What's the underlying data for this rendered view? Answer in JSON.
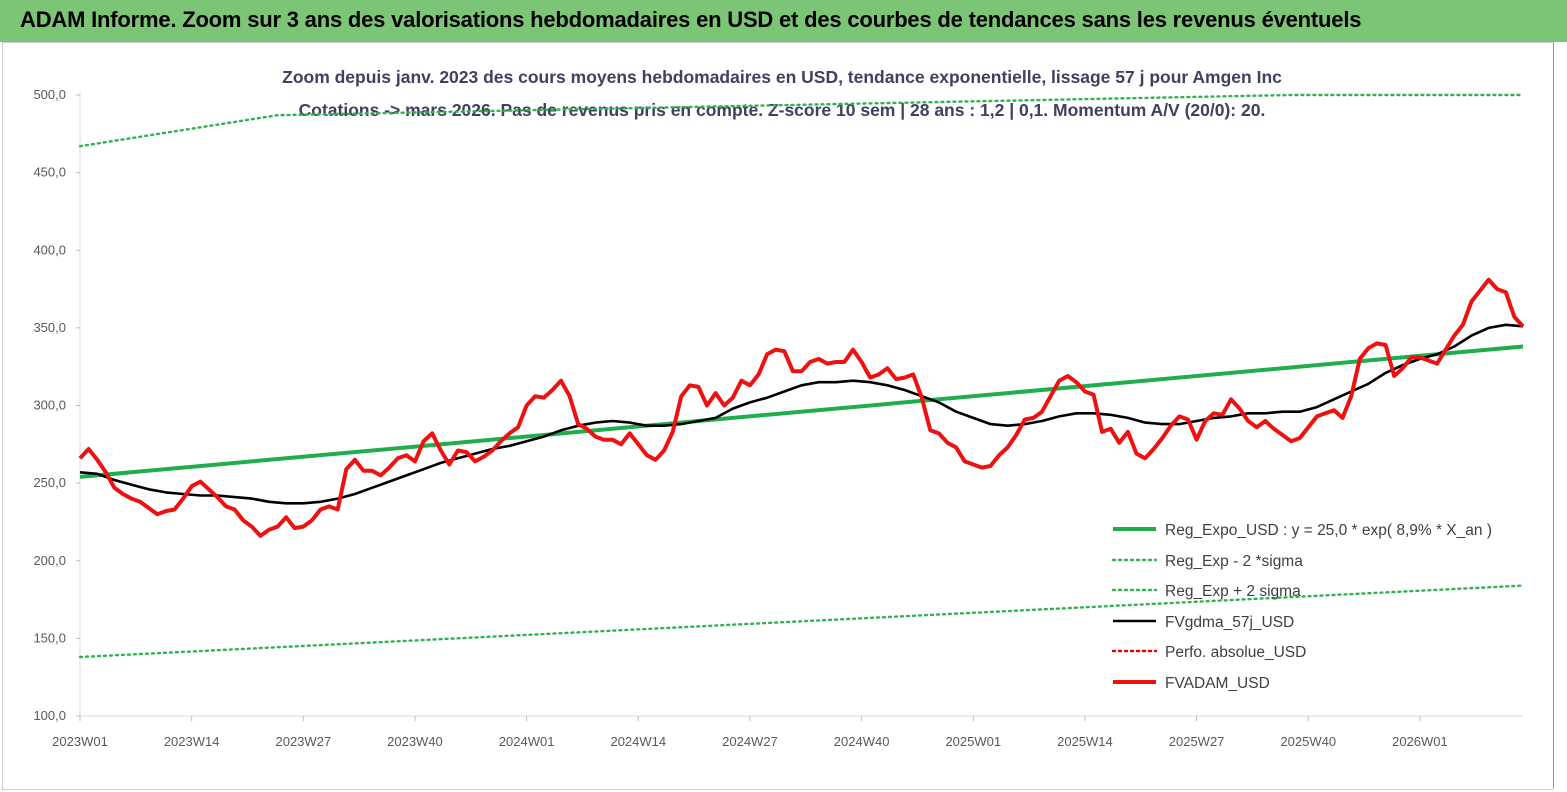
{
  "banner_title": "ADAM Informe. Zoom sur 3 ans des valorisations hebdomadaires en USD et des courbes de tendances sans les revenus éventuels",
  "colors": {
    "banner": "#7cc576",
    "reg_expo": "#1fae4b",
    "sigma": "#2fb24f",
    "gdma": "#000000",
    "perfo": "#e00000",
    "adam": "#ee1111"
  },
  "chart_data": {
    "type": "line",
    "title_line1": "Zoom depuis janv. 2023 des cours moyens hebdomadaires en USD, tendance exponentielle, lissage 57 j pour Amgen Inc",
    "title_line2": "Cotations -> mars 2026. Pas de revenus pris en compte. Z-score 10 sem | 28 ans : 1,2 | 0,1. Momentum A/V (20/0): 20.",
    "ylim": [
      100,
      500
    ],
    "y_ticks": [
      "100,0",
      "150,0",
      "200,0",
      "250,0",
      "300,0",
      "350,0",
      "400,0",
      "450,0",
      "500,0"
    ],
    "x_ticks": [
      "2023W01",
      "2023W14",
      "2023W27",
      "2023W40",
      "2024W01",
      "2024W14",
      "2024W27",
      "2024W40",
      "2025W01",
      "2025W14",
      "2025W27",
      "2025W40",
      "2026W01"
    ],
    "x_week_count": 169,
    "grid": false,
    "legend_position": "bottom-right",
    "series": [
      {
        "name": "Reg_Expo_USD : y = 25,0 * exp( 8,9% *  X_an )",
        "style": "solid-thick",
        "color": "#1fae4b",
        "x": [
          0,
          168
        ],
        "y": [
          254,
          338
        ]
      },
      {
        "name": "Reg_Exp - 2 *sigma",
        "style": "dotted",
        "color": "#2fb24f",
        "x": [
          0,
          168
        ],
        "y": [
          138,
          184
        ]
      },
      {
        "name": "Reg_Exp + 2 sigma",
        "style": "dotted",
        "color": "#2fb24f",
        "x": [
          0,
          23,
          141,
          168
        ],
        "y": [
          467,
          487,
          500,
          500
        ]
      },
      {
        "name": "FVgdma_57j_USD",
        "style": "solid",
        "color": "#000000",
        "x": [
          0,
          2,
          4,
          6,
          8,
          10,
          12,
          14,
          16,
          18,
          20,
          22,
          24,
          26,
          28,
          30,
          32,
          34,
          36,
          38,
          40,
          42,
          44,
          46,
          48,
          50,
          52,
          54,
          56,
          58,
          60,
          62,
          64,
          66,
          68,
          70,
          72,
          74,
          76,
          78,
          80,
          82,
          84,
          86,
          88,
          90,
          92,
          94,
          96,
          98,
          100,
          102,
          104,
          106,
          108,
          110,
          112,
          114,
          116,
          118,
          120,
          122,
          124,
          126,
          128,
          130,
          132,
          134,
          136,
          138,
          140,
          142,
          144,
          146,
          148,
          150,
          152,
          154,
          156,
          158,
          160,
          162,
          164,
          166,
          168
        ],
        "y": [
          257,
          256,
          252,
          249,
          246,
          244,
          243,
          242,
          242,
          241,
          240,
          238,
          237,
          237,
          238,
          240,
          243,
          247,
          251,
          255,
          259,
          263,
          266,
          269,
          272,
          274,
          277,
          280,
          284,
          287,
          289,
          290,
          289,
          287,
          287,
          288,
          290,
          292,
          298,
          302,
          305,
          309,
          313,
          315,
          315,
          316,
          315,
          313,
          310,
          306,
          302,
          296,
          292,
          288,
          287,
          288,
          290,
          293,
          295,
          295,
          294,
          292,
          289,
          288,
          288,
          290,
          292,
          293,
          295,
          295,
          296,
          296,
          299,
          304,
          309,
          314,
          321,
          326,
          330,
          333,
          338,
          345,
          350,
          352,
          351
        ],
        "note": ""
      },
      {
        "name": "Perfo. absolue_USD",
        "style": "dotted",
        "color": "#e00000",
        "x": [],
        "y": []
      },
      {
        "name": "FVADAM_USD",
        "style": "solid-thick",
        "color": "#ee1111",
        "x": [
          0,
          1,
          2,
          3,
          4,
          5,
          6,
          7,
          8,
          9,
          10,
          11,
          12,
          13,
          14,
          15,
          16,
          17,
          18,
          19,
          20,
          21,
          22,
          23,
          24,
          25,
          26,
          27,
          28,
          29,
          30,
          31,
          32,
          33,
          34,
          35,
          36,
          37,
          38,
          39,
          40,
          41,
          42,
          43,
          44,
          45,
          46,
          47,
          48,
          49,
          50,
          51,
          52,
          53,
          54,
          55,
          56,
          57,
          58,
          59,
          60,
          61,
          62,
          63,
          64,
          65,
          66,
          67,
          68,
          69,
          70,
          71,
          72,
          73,
          74,
          75,
          76,
          77,
          78,
          79,
          80,
          81,
          82,
          83,
          84,
          85,
          86,
          87,
          88,
          89,
          90,
          91,
          92,
          93,
          94,
          95,
          96,
          97,
          98,
          99,
          100,
          101,
          102,
          103,
          104,
          105,
          106,
          107,
          108,
          109,
          110,
          111,
          112,
          113,
          114,
          115,
          116,
          117,
          118,
          119,
          120,
          121,
          122,
          123,
          124,
          125,
          126,
          127,
          128,
          129,
          130,
          131,
          132,
          133,
          134,
          135,
          136,
          137,
          138,
          139,
          140,
          141,
          142,
          143,
          144,
          145,
          146,
          147,
          148,
          149,
          150,
          151,
          152,
          153,
          154,
          155,
          156,
          157,
          158,
          159,
          160,
          161,
          162,
          163,
          164,
          165,
          166,
          167,
          168
        ],
        "y": [
          266,
          272,
          265,
          257,
          247,
          243,
          240,
          238,
          234,
          230,
          232,
          233,
          240,
          248,
          251,
          246,
          241,
          235,
          233,
          226,
          222,
          216,
          220,
          222,
          228,
          221,
          222,
          226,
          233,
          235,
          233,
          259,
          265,
          258,
          258,
          255,
          260,
          266,
          268,
          264,
          277,
          282,
          271,
          262,
          271,
          270,
          264,
          267,
          271,
          277,
          282,
          286,
          300,
          306,
          305,
          310,
          316,
          306,
          288,
          285,
          280,
          278,
          278,
          275,
          282,
          275,
          268,
          265,
          271,
          283,
          306,
          313,
          312,
          300,
          308,
          300,
          305,
          316,
          313,
          320,
          333,
          336,
          335,
          322,
          322,
          328,
          330,
          327,
          328,
          328,
          336,
          328,
          318,
          320,
          324,
          317,
          318,
          320,
          305,
          284,
          282,
          276,
          273,
          264,
          262,
          260,
          261,
          268,
          273,
          281,
          291,
          292,
          296,
          306,
          316,
          319,
          315,
          309,
          307,
          283,
          285,
          276,
          283,
          269,
          266,
          272,
          279,
          287,
          293,
          291,
          278,
          290,
          295,
          294,
          304,
          298,
          290,
          286,
          290,
          285,
          281,
          277,
          279,
          286,
          293,
          295,
          297,
          292,
          306,
          330,
          337,
          340,
          339,
          319,
          324,
          331,
          331,
          329,
          327,
          336,
          345,
          352,
          367,
          374,
          381,
          375,
          373,
          357,
          351
        ]
      }
    ]
  }
}
